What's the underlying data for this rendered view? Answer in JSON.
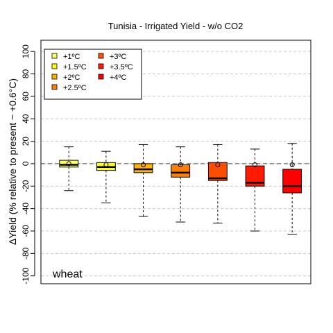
{
  "chart_data": {
    "type": "boxplot",
    "title": "Tunisia - Irrigated Yield - w/o CO2",
    "ylabel": "ΔYield (% relative to present ~ +0.6°C)",
    "annotation": "wheat",
    "ylim": [
      -107,
      110
    ],
    "yticks": [
      -100,
      -80,
      -60,
      -40,
      -20,
      0,
      20,
      40,
      60,
      80,
      100
    ],
    "grid": true,
    "reference_line": 0,
    "legend_position": "top-left",
    "series": [
      {
        "name": "+1ºC",
        "color": "#FFFF66",
        "whisker_low": -24,
        "q1": -3,
        "median": -1,
        "q3": 3,
        "whisker_high": 15,
        "mean": 0
      },
      {
        "name": "+1.5ºC",
        "color": "#FFFF1A",
        "whisker_low": -35,
        "q1": -6,
        "median": -3,
        "q3": 1,
        "whisker_high": 11,
        "mean": -1
      },
      {
        "name": "+2ºC",
        "color": "#FFB300",
        "whisker_low": -47,
        "q1": -8,
        "median": -5,
        "q3": 0,
        "whisker_high": 17,
        "mean": -1
      },
      {
        "name": "+2.5ºC",
        "color": "#FF8000",
        "whisker_low": -52,
        "q1": -12,
        "median": -8,
        "q3": -1,
        "whisker_high": 15,
        "mean": -1
      },
      {
        "name": "+3ºC",
        "color": "#FF4D00",
        "whisker_low": -53,
        "q1": -15,
        "median": -13,
        "q3": 1,
        "whisker_high": 17,
        "mean": -1
      },
      {
        "name": "+3.5ºC",
        "color": "#FF1A00",
        "whisker_low": -60,
        "q1": -20,
        "median": -17,
        "q3": -2,
        "whisker_high": 13,
        "mean": -1
      },
      {
        "name": "+4ºC",
        "color": "#FF0000",
        "whisker_low": -63,
        "q1": -26,
        "median": -20,
        "q3": -5,
        "whisker_high": 18,
        "mean": -1
      }
    ]
  }
}
